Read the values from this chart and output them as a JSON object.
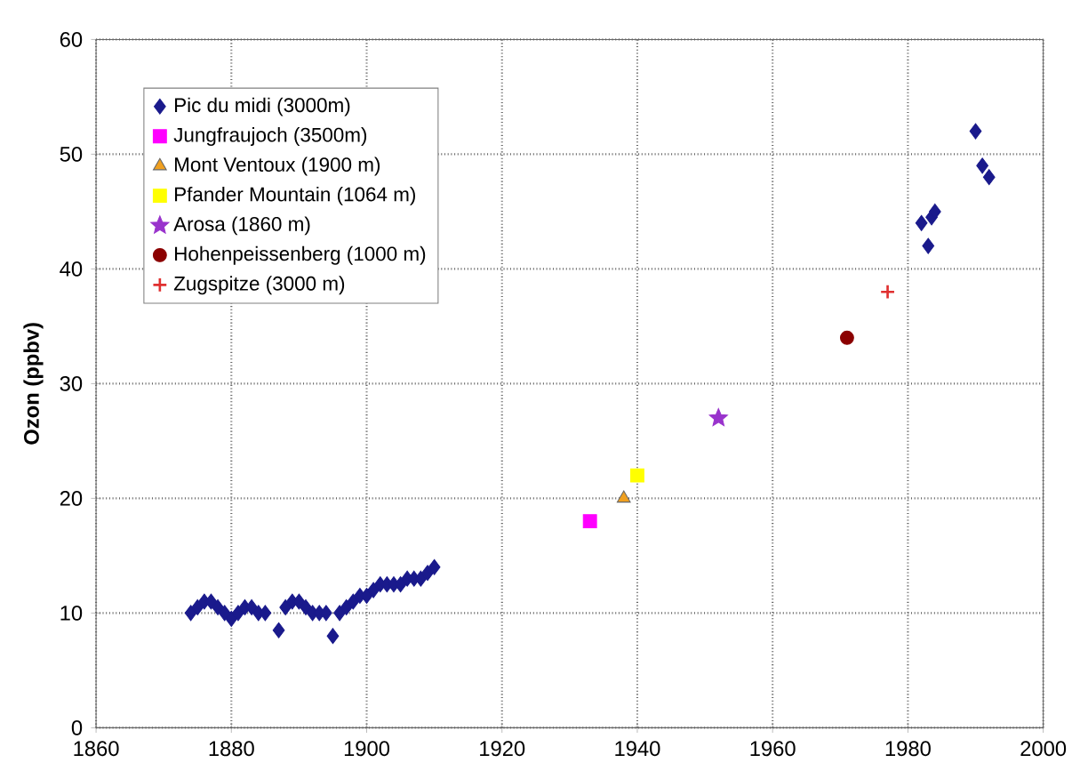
{
  "chart_data": {
    "type": "scatter",
    "ylabel": "Ozon (ppbv)",
    "xlim": [
      1860,
      2000
    ],
    "ylim": [
      0,
      60
    ],
    "xticks": [
      1860,
      1880,
      1900,
      1920,
      1940,
      1960,
      1980,
      2000
    ],
    "yticks": [
      0,
      10,
      20,
      30,
      40,
      50,
      60
    ],
    "grid": true,
    "legend": "top left",
    "series": [
      {
        "name": "Pic du midi (3000m)",
        "color": "#1a1a8c",
        "marker": "diamond",
        "x": [
          1874,
          1875,
          1876,
          1877,
          1878,
          1879,
          1880,
          1881,
          1882,
          1883,
          1884,
          1885,
          1887,
          1888,
          1889,
          1890,
          1891,
          1892,
          1893,
          1894,
          1895,
          1896,
          1897,
          1898,
          1899,
          1900,
          1901,
          1902,
          1903,
          1904,
          1905,
          1906,
          1907,
          1908,
          1909,
          1910,
          1982,
          1983,
          1983.5,
          1984,
          1990,
          1991,
          1992
        ],
        "values": [
          10,
          10.5,
          11,
          11,
          10.5,
          10,
          9.5,
          10,
          10.5,
          10.5,
          10,
          10,
          8.5,
          10.5,
          11,
          11,
          10.5,
          10,
          10,
          10,
          8,
          10,
          10.5,
          11,
          11.5,
          11.5,
          12,
          12.5,
          12.5,
          12.5,
          12.5,
          13,
          13,
          13,
          13.5,
          14,
          44,
          42,
          44.5,
          45,
          52,
          49,
          48
        ]
      },
      {
        "name": "Jungfraujoch (3500m)",
        "color": "#ff00ff",
        "marker": "square",
        "x": [
          1933
        ],
        "values": [
          18
        ]
      },
      {
        "name": "Mont Ventoux (1900 m)",
        "color": "#f0a020",
        "marker": "triangle",
        "x": [
          1938
        ],
        "values": [
          20
        ]
      },
      {
        "name": "Pfander Mountain (1064 m)",
        "color": "#ffff00",
        "marker": "square",
        "x": [
          1940
        ],
        "values": [
          22
        ]
      },
      {
        "name": "Arosa (1860 m)",
        "color": "#9933cc",
        "marker": "star",
        "x": [
          1952
        ],
        "values": [
          27
        ]
      },
      {
        "name": "Hohenpeissenberg (1000 m)",
        "color": "#8b0000",
        "marker": "circle",
        "x": [
          1971
        ],
        "values": [
          34
        ]
      },
      {
        "name": "Zugspitze (3000 m)",
        "color": "#e03030",
        "marker": "cross",
        "x": [
          1977
        ],
        "values": [
          38
        ]
      }
    ]
  }
}
